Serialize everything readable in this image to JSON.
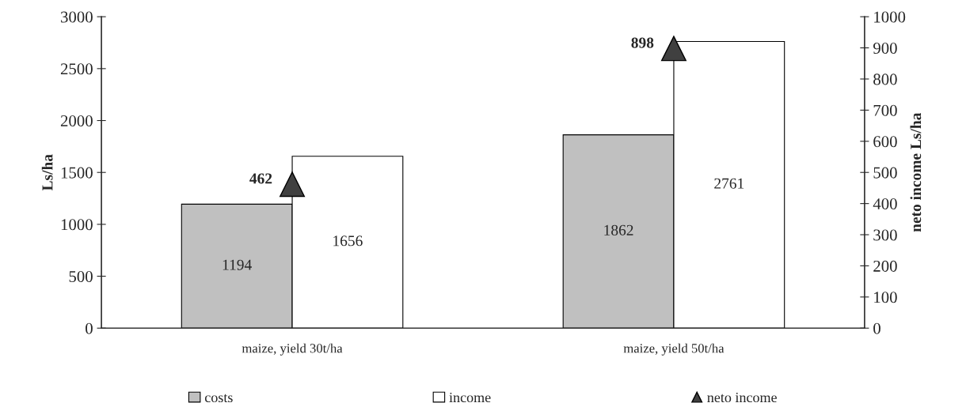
{
  "chart_data": {
    "type": "bar",
    "ylabel": "Ls/ha",
    "y2label": "neto income Ls/ha",
    "categories": [
      "maize, yield 30t/ha",
      "maize, yield 50t/ha"
    ],
    "series": [
      {
        "name": "costs",
        "color": "#c0c0c0",
        "values": [
          1194,
          1862
        ]
      },
      {
        "name": "income",
        "color": "#ffffff",
        "values": [
          1656,
          2761
        ]
      },
      {
        "name": "neto income",
        "type": "scatter",
        "axis": "y2",
        "marker": "triangle",
        "color": "#404040",
        "values": [
          462,
          898
        ]
      }
    ],
    "ylim": [
      0,
      3000
    ],
    "yticks": [
      0,
      500,
      1000,
      1500,
      2000,
      2500,
      3000
    ],
    "y2lim": [
      0,
      1000
    ],
    "y2ticks": [
      0,
      100,
      200,
      300,
      400,
      500,
      600,
      700,
      800,
      900,
      1000
    ],
    "data_labels": true,
    "grid": false,
    "legend": "bottom"
  }
}
